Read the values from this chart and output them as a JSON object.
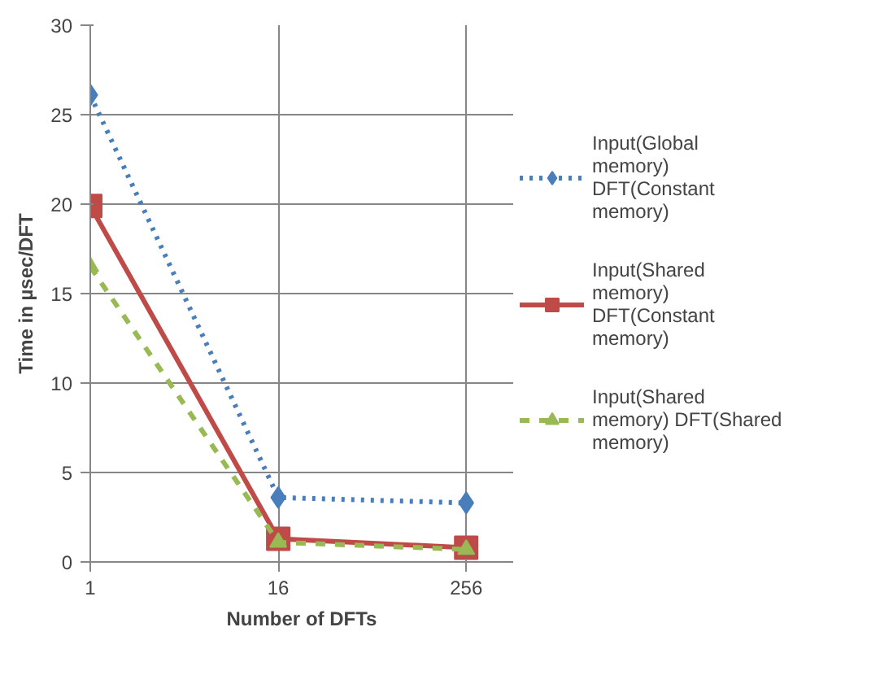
{
  "chart_data": {
    "type": "line",
    "xlabel": "Number of DFTs",
    "ylabel": "Time in µsec/DFT",
    "categories": [
      "1",
      "16",
      "256"
    ],
    "ylim": [
      0,
      30
    ],
    "yticks": [
      0,
      5,
      10,
      15,
      20,
      25,
      30
    ],
    "grid": true,
    "legend": "right",
    "series": [
      {
        "name": "Input(Global memory) DFT(Constant memory)",
        "color": "#4a7ebb",
        "marker": "diamond",
        "line_style": "dotted",
        "values": [
          26.1,
          3.6,
          3.3
        ]
      },
      {
        "name": "Input(Shared memory) DFT(Constant memory)",
        "color": "#be4b48",
        "marker": "square",
        "line_style": "solid",
        "values": [
          19.9,
          1.3,
          0.8
        ]
      },
      {
        "name": "Input(Shared memory) DFT(Shared memory)",
        "color": "#98b954",
        "marker": "triangle",
        "line_style": "dashed",
        "values": [
          16.5,
          1.1,
          0.7
        ]
      }
    ]
  }
}
